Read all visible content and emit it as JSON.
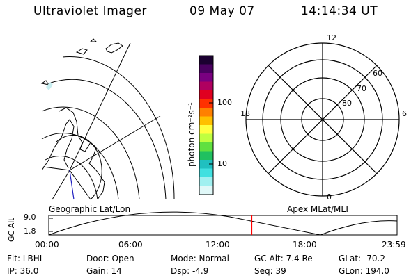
{
  "header": {
    "instrument": "Ultraviolet Imager",
    "date": "09 May 07",
    "time": "14:14:34 UT"
  },
  "colorbar": {
    "label": "photon cm⁻²s⁻¹",
    "ticks": [
      "100",
      "10"
    ],
    "colors": [
      "#1b0030",
      "#4a0060",
      "#7a0080",
      "#b00060",
      "#e00020",
      "#ff3000",
      "#ff8000",
      "#ffc000",
      "#ffff40",
      "#c0ff40",
      "#60e040",
      "#20c060",
      "#20c0c0",
      "#40e0e0",
      "#a0f0f0",
      "#e0f8f8"
    ]
  },
  "left_panel": {
    "label": "Geographic Lat/Lon"
  },
  "right_panel": {
    "label": "Apex MLat/MLT",
    "mlt_labels": {
      "top": "12",
      "left": "18",
      "right": "6",
      "bottom": "0"
    },
    "lat_labels": [
      "60",
      "70",
      "80"
    ]
  },
  "orbit_plot": {
    "ylabel": "GC Alt",
    "yticks": [
      "9.0",
      "1.8"
    ],
    "xticks": [
      "00:00",
      "06:00",
      "12:00",
      "18:00",
      "23:59"
    ],
    "current_time_frac": 0.583,
    "marker_color": "#ff0000"
  },
  "status": {
    "flt": "Flt: LBHL",
    "ip": "IP: 36.0",
    "door": "Door: Open",
    "gain": "Gain: 14",
    "mode": "Mode: Normal",
    "dsp": "Dsp:    -4.9",
    "gcalt": "GC Alt: 7.4 Re",
    "seq": "Seq: 39",
    "glat": "GLat: -70.2",
    "glon": "GLon: 194.0"
  }
}
